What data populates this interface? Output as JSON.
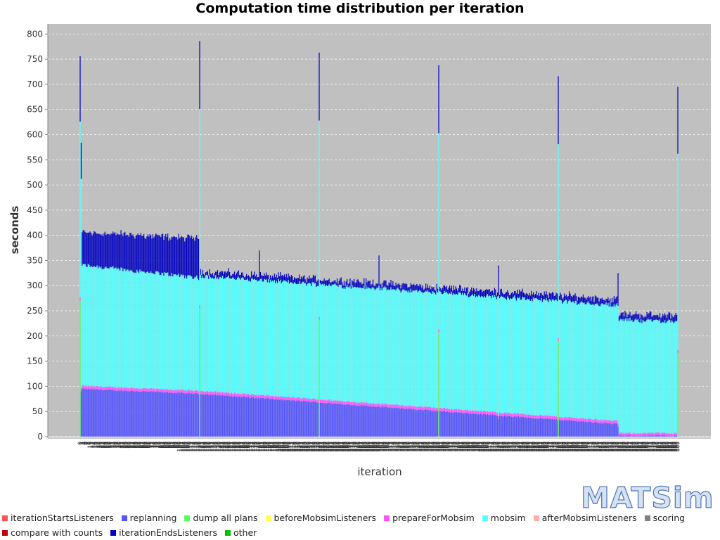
{
  "chart_data": {
    "type": "bar",
    "stacked": true,
    "title": "Computation time distribution per iteration",
    "xlabel": "iteration",
    "ylabel": "seconds",
    "ylim": [
      0,
      820
    ],
    "yticks": [
      0,
      50,
      100,
      150,
      200,
      250,
      300,
      350,
      400,
      450,
      500,
      550,
      600,
      650,
      700,
      750,
      800
    ],
    "grid": true,
    "legend_position": "bottom",
    "iterations": {
      "first": 0,
      "last": 600,
      "step": 1
    },
    "series": [
      {
        "name": "iterationStartsListeners",
        "color": "#ff5555"
      },
      {
        "name": "replanning",
        "color": "#5555ff"
      },
      {
        "name": "dump all plans",
        "color": "#55ff55"
      },
      {
        "name": "beforeMobsimListeners",
        "color": "#ffff55"
      },
      {
        "name": "prepareForMobsim",
        "color": "#ff55ff"
      },
      {
        "name": "mobsim",
        "color": "#55ffff"
      },
      {
        "name": "afterMobsimListeners",
        "color": "#ffafaf"
      },
      {
        "name": "scoring",
        "color": "#808080"
      },
      {
        "name": "compare with counts",
        "color": "#c00000"
      },
      {
        "name": "iterationEndsListeners",
        "color": "#0000c0"
      },
      {
        "name": "other",
        "color": "#00c000"
      }
    ],
    "segments": [
      {
        "from": 1,
        "to": 120,
        "replanning": [
          95,
          85
        ],
        "prepare": 6,
        "mobsim": [
          240,
          225
        ],
        "ends": [
          65,
          78
        ]
      },
      {
        "from": 121,
        "to": 540,
        "replanning": [
          85,
          25
        ],
        "prepare": 6,
        "mobsim": [
          228,
          230
        ],
        "ends": [
          10,
          12
        ]
      },
      {
        "from": 541,
        "to": 600,
        "replanning": [
          2,
          2
        ],
        "prepare": 5,
        "mobsim": [
          225,
          222
        ],
        "ends": [
          12,
          12
        ]
      }
    ],
    "dump_iterations": [
      {
        "iteration": 0,
        "replanning": 0,
        "dump": 270,
        "prepare": 6,
        "mobsim": 350,
        "ends": 130
      },
      {
        "iteration": 120,
        "replanning": 0,
        "dump": 255,
        "prepare": 6,
        "mobsim": 390,
        "ends": 135
      },
      {
        "iteration": 240,
        "replanning": 0,
        "dump": 232,
        "prepare": 6,
        "mobsim": 390,
        "ends": 135
      },
      {
        "iteration": 360,
        "replanning": 0,
        "dump": 207,
        "prepare": 6,
        "mobsim": 390,
        "ends": 135
      },
      {
        "iteration": 480,
        "replanning": 0,
        "dump": 190,
        "prepare": 6,
        "mobsim": 385,
        "ends": 135
      },
      {
        "iteration": 600,
        "replanning": 0,
        "dump": 166,
        "prepare": 6,
        "mobsim": 390,
        "ends": 133
      }
    ],
    "spikes": [
      {
        "iteration": 1,
        "replanning": 90,
        "prepare": 6,
        "mobsim": 416,
        "ends": 72
      },
      {
        "iteration": 180,
        "replanning": 75,
        "prepare": 6,
        "mobsim": 229,
        "ends": 60
      },
      {
        "iteration": 300,
        "replanning": 60,
        "prepare": 6,
        "mobsim": 234,
        "ends": 60
      },
      {
        "iteration": 420,
        "replanning": 35,
        "prepare": 6,
        "mobsim": 239,
        "ends": 60
      },
      {
        "iteration": 540,
        "replanning": 20,
        "prepare": 6,
        "mobsim": 234,
        "ends": 65
      }
    ]
  },
  "logo_text": "MATSim"
}
